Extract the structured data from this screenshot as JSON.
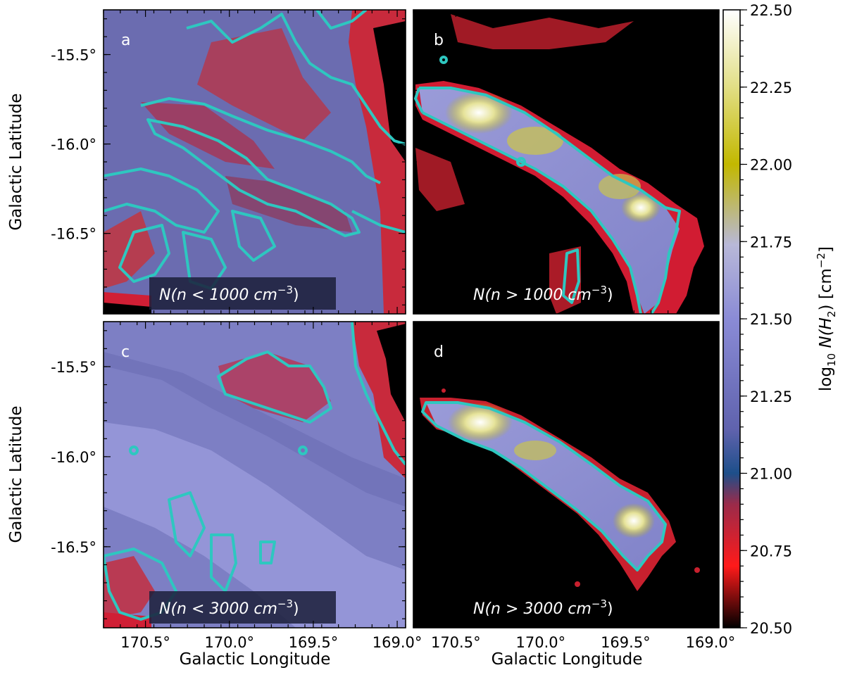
{
  "chart_data": {
    "type": "heatmap",
    "panels": [
      {
        "id": "a",
        "letter": "a",
        "label_prefix": "N(n < 1000 cm",
        "label_exp": "−3",
        "label_suffix": ")"
      },
      {
        "id": "b",
        "letter": "b",
        "label_prefix": "N(n > 1000 cm",
        "label_exp": "−3",
        "label_suffix": ")"
      },
      {
        "id": "c",
        "letter": "c",
        "label_prefix": "N(n < 3000 cm",
        "label_exp": "−3",
        "label_suffix": ")"
      },
      {
        "id": "d",
        "letter": "d",
        "label_prefix": "N(n > 3000 cm",
        "label_exp": "−3",
        "label_suffix": ")"
      }
    ],
    "xlabel": "Galactic Longitude",
    "ylabel": "Galactic Latitude",
    "xlim": [
      170.75,
      168.95
    ],
    "ylim": [
      -16.95,
      -15.25
    ],
    "xticks": [
      {
        "value": 170.5,
        "label": "170.5°"
      },
      {
        "value": 170.0,
        "label": "170.0°"
      },
      {
        "value": 169.5,
        "label": "169.5°"
      },
      {
        "value": 169.0,
        "label": "169.0°"
      }
    ],
    "yticks": [
      {
        "value": -15.5,
        "label": "-15.5°"
      },
      {
        "value": -16.0,
        "label": "-16.0°"
      },
      {
        "value": -16.5,
        "label": "-16.5°"
      }
    ],
    "colorbar": {
      "label_prefix": "log",
      "label_sub": "10",
      "label_mid": " N(H",
      "label_sub2": "2",
      "label_suffix": ") [cm",
      "label_exp": "−2",
      "label_end": "]",
      "range": [
        20.5,
        22.5
      ],
      "ticks": [
        {
          "value": 22.5,
          "label": "22.50"
        },
        {
          "value": 22.25,
          "label": "22.25"
        },
        {
          "value": 22.0,
          "label": "22.00"
        },
        {
          "value": 21.75,
          "label": "21.75"
        },
        {
          "value": 21.5,
          "label": "21.50"
        },
        {
          "value": 21.25,
          "label": "21.25"
        },
        {
          "value": 21.0,
          "label": "21.00"
        },
        {
          "value": 20.75,
          "label": "20.75"
        },
        {
          "value": 20.5,
          "label": "20.50"
        }
      ],
      "colors": [
        "#000000",
        "#ff1a1a",
        "#9b2b4a",
        "#1d4f8a",
        "#6f71b9",
        "#8a8bd6",
        "#b8b8d8",
        "#c2b800",
        "#d6d24a",
        "#ffffff"
      ]
    }
  }
}
